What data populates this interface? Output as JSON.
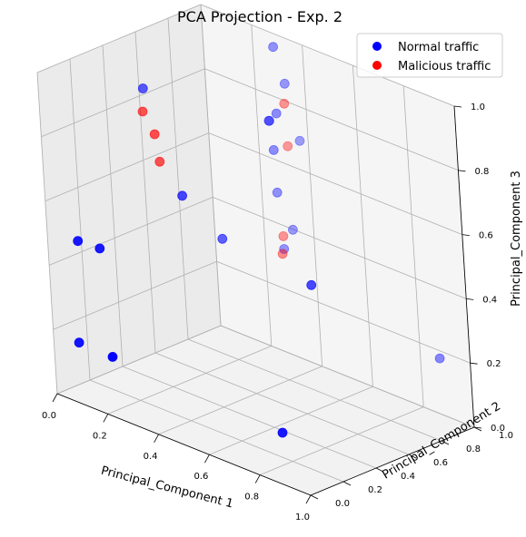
{
  "chart_data": {
    "type": "scatter",
    "title": "PCA Projection - Exp. 2",
    "xlabel": "Principal_Component 1",
    "ylabel": "Principal_Component 2",
    "zlabel": "Principal_Component 3",
    "xlim": [
      0,
      1
    ],
    "ylim": [
      0,
      1
    ],
    "zlim": [
      0,
      1
    ],
    "xticks": [
      "0.0",
      "0.2",
      "0.4",
      "0.6",
      "0.8",
      "1.0"
    ],
    "yticks": [
      "0.0",
      "0.2",
      "0.4",
      "0.6",
      "0.8",
      "1.0"
    ],
    "zticks": [
      "0.0",
      "0.2",
      "0.4",
      "0.6",
      "0.8",
      "1.0"
    ],
    "grid": true,
    "legend_position": "top-right",
    "series": [
      {
        "name": "Normal traffic",
        "color": "#0000ff",
        "points": [
          {
            "x": 0.02,
            "y": 0.12,
            "z": 0.14
          },
          {
            "x": 0.22,
            "y": 0.02,
            "z": 0.18
          },
          {
            "x": 0.02,
            "y": 0.15,
            "z": 0.45
          },
          {
            "x": 0.1,
            "y": 0.16,
            "z": 0.45
          },
          {
            "x": 0.05,
            "y": 0.55,
            "z": 0.85
          },
          {
            "x": 0.25,
            "y": 0.45,
            "z": 0.6
          },
          {
            "x": 0.3,
            "y": 0.6,
            "z": 0.45
          },
          {
            "x": 0.8,
            "y": 0.15,
            "z": 0.1
          },
          {
            "x": 0.75,
            "y": 0.45,
            "z": 0.48
          },
          {
            "x": 0.98,
            "y": 0.85,
            "z": 0.24
          },
          {
            "x": 0.35,
            "y": 0.9,
            "z": 1.0
          },
          {
            "x": 0.36,
            "y": 0.94,
            "z": 0.88
          },
          {
            "x": 0.36,
            "y": 0.88,
            "z": 0.8
          },
          {
            "x": 0.38,
            "y": 0.98,
            "z": 0.7
          },
          {
            "x": 0.35,
            "y": 0.85,
            "z": 0.78
          },
          {
            "x": 0.3,
            "y": 0.92,
            "z": 0.75
          },
          {
            "x": 0.34,
            "y": 0.88,
            "z": 0.68
          },
          {
            "x": 0.33,
            "y": 0.9,
            "z": 0.54
          },
          {
            "x": 0.35,
            "y": 0.95,
            "z": 0.42
          },
          {
            "x": 0.33,
            "y": 0.92,
            "z": 0.36
          }
        ]
      },
      {
        "name": "Malicious traffic",
        "color": "#ff0000",
        "points": [
          {
            "x": 0.05,
            "y": 0.54,
            "z": 0.78
          },
          {
            "x": 0.12,
            "y": 0.5,
            "z": 0.74
          },
          {
            "x": 0.12,
            "y": 0.52,
            "z": 0.65
          },
          {
            "x": 0.36,
            "y": 0.93,
            "z": 0.82
          },
          {
            "x": 0.35,
            "y": 0.95,
            "z": 0.68
          },
          {
            "x": 0.33,
            "y": 0.92,
            "z": 0.4
          },
          {
            "x": 0.35,
            "y": 0.88,
            "z": 0.36
          }
        ]
      }
    ]
  }
}
